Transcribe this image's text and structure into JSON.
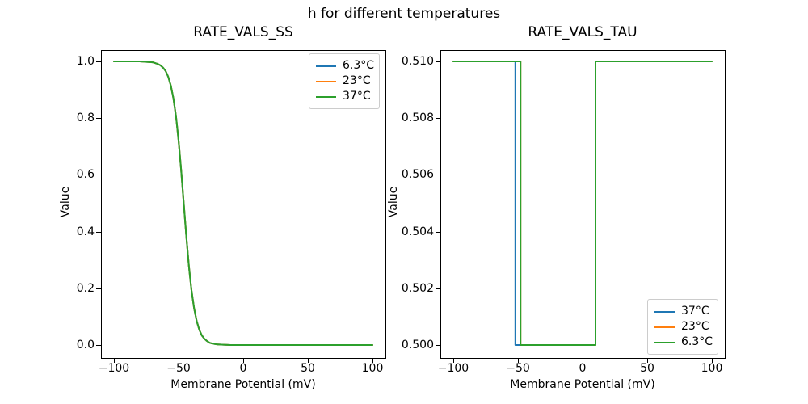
{
  "figure": {
    "suptitle": "h for different temperatures",
    "background": "#ffffff",
    "text_color": "#000000",
    "axes_border_color": "#000000",
    "legend_border_color": "#cccccc"
  },
  "chart_data": [
    {
      "type": "line",
      "title": "RATE_VALS_SS",
      "xlabel": "Membrane Potential (mV)",
      "ylabel": "Value",
      "xlim": [
        -110,
        110
      ],
      "ylim": [
        -0.05,
        1.05
      ],
      "grid": false,
      "xticks": [
        -100,
        -50,
        0,
        50,
        100
      ],
      "xtick_labels": [
        "−100",
        "−50",
        "0",
        "50",
        "100"
      ],
      "yticks": [
        0.0,
        0.2,
        0.4,
        0.6,
        0.8,
        1.0
      ],
      "ytick_labels": [
        "0.0",
        "0.2",
        "0.4",
        "0.6",
        "0.8",
        "1.0"
      ],
      "legend": {
        "position": "upper right",
        "entries": [
          {
            "label": "6.3°C",
            "color": "#1f77b4"
          },
          {
            "label": "23°C",
            "color": "#ff7f0e"
          },
          {
            "label": "37°C",
            "color": "#2ca02c"
          }
        ]
      },
      "note": "all three temperature curves overlap exactly; green (37°C, plotted last) is visible",
      "x": [
        -100,
        -90,
        -80,
        -70,
        -66,
        -64,
        -62,
        -60,
        -58,
        -56,
        -54,
        -52,
        -50,
        -48,
        -46,
        -44,
        -42,
        -40,
        -38,
        -36,
        -34,
        -32,
        -30,
        -28,
        -26,
        -24,
        -20,
        -15,
        -10,
        0,
        25,
        50,
        75,
        100
      ],
      "series": [
        {
          "name": "6.3°C",
          "color": "#1f77b4",
          "values": [
            1.0,
            1.0,
            1.0,
            0.997,
            0.991,
            0.986,
            0.978,
            0.966,
            0.946,
            0.915,
            0.87,
            0.807,
            0.722,
            0.617,
            0.5,
            0.383,
            0.278,
            0.193,
            0.13,
            0.085,
            0.054,
            0.034,
            0.022,
            0.014,
            0.008,
            0.005,
            0.002,
            0.001,
            0.0,
            0.0,
            0.0,
            0.0,
            0.0,
            0.0
          ]
        },
        {
          "name": "23°C",
          "color": "#ff7f0e",
          "values": [
            1.0,
            1.0,
            1.0,
            0.997,
            0.991,
            0.986,
            0.978,
            0.966,
            0.946,
            0.915,
            0.87,
            0.807,
            0.722,
            0.617,
            0.5,
            0.383,
            0.278,
            0.193,
            0.13,
            0.085,
            0.054,
            0.034,
            0.022,
            0.014,
            0.008,
            0.005,
            0.002,
            0.001,
            0.0,
            0.0,
            0.0,
            0.0,
            0.0,
            0.0
          ]
        },
        {
          "name": "37°C",
          "color": "#2ca02c",
          "values": [
            1.0,
            1.0,
            1.0,
            0.997,
            0.991,
            0.986,
            0.978,
            0.966,
            0.946,
            0.915,
            0.87,
            0.807,
            0.722,
            0.617,
            0.5,
            0.383,
            0.278,
            0.193,
            0.13,
            0.085,
            0.054,
            0.034,
            0.022,
            0.014,
            0.008,
            0.005,
            0.002,
            0.001,
            0.0,
            0.0,
            0.0,
            0.0,
            0.0,
            0.0
          ]
        }
      ]
    },
    {
      "type": "line",
      "title": "RATE_VALS_TAU",
      "xlabel": "Membrane Potential (mV)",
      "ylabel": "Value",
      "xlim": [
        -110,
        110
      ],
      "ylim": [
        0.4995,
        0.5105
      ],
      "grid": false,
      "xticks": [
        -100,
        -50,
        0,
        50,
        100
      ],
      "xtick_labels": [
        "−100",
        "−50",
        "0",
        "50",
        "100"
      ],
      "yticks": [
        0.5,
        0.502,
        0.504,
        0.506,
        0.508,
        0.51
      ],
      "ytick_labels": [
        "0.500",
        "0.502",
        "0.504",
        "0.506",
        "0.508",
        "0.510"
      ],
      "legend": {
        "position": "lower right",
        "entries": [
          {
            "label": "37°C",
            "color": "#1f77b4"
          },
          {
            "label": "23°C",
            "color": "#ff7f0e"
          },
          {
            "label": "6.3°C",
            "color": "#2ca02c"
          }
        ]
      },
      "note": "step functions: value 0.510 except a notch at 0.500; blue (37°C) drops at -52 mV, orange and green (hidden/visible) drop at -48 mV, all rise back at +10 mV",
      "series": [
        {
          "name": "37°C",
          "color": "#1f77b4",
          "x": [
            -100,
            -52,
            -52,
            10,
            10,
            100
          ],
          "values": [
            0.51,
            0.51,
            0.5,
            0.5,
            0.51,
            0.51
          ]
        },
        {
          "name": "23°C",
          "color": "#ff7f0e",
          "x": [
            -100,
            -48,
            -48,
            10,
            10,
            100
          ],
          "values": [
            0.51,
            0.51,
            0.5,
            0.5,
            0.51,
            0.51
          ]
        },
        {
          "name": "6.3°C",
          "color": "#2ca02c",
          "x": [
            -100,
            -48,
            -48,
            10,
            10,
            100
          ],
          "values": [
            0.51,
            0.51,
            0.5,
            0.5,
            0.51,
            0.51
          ]
        }
      ]
    }
  ]
}
